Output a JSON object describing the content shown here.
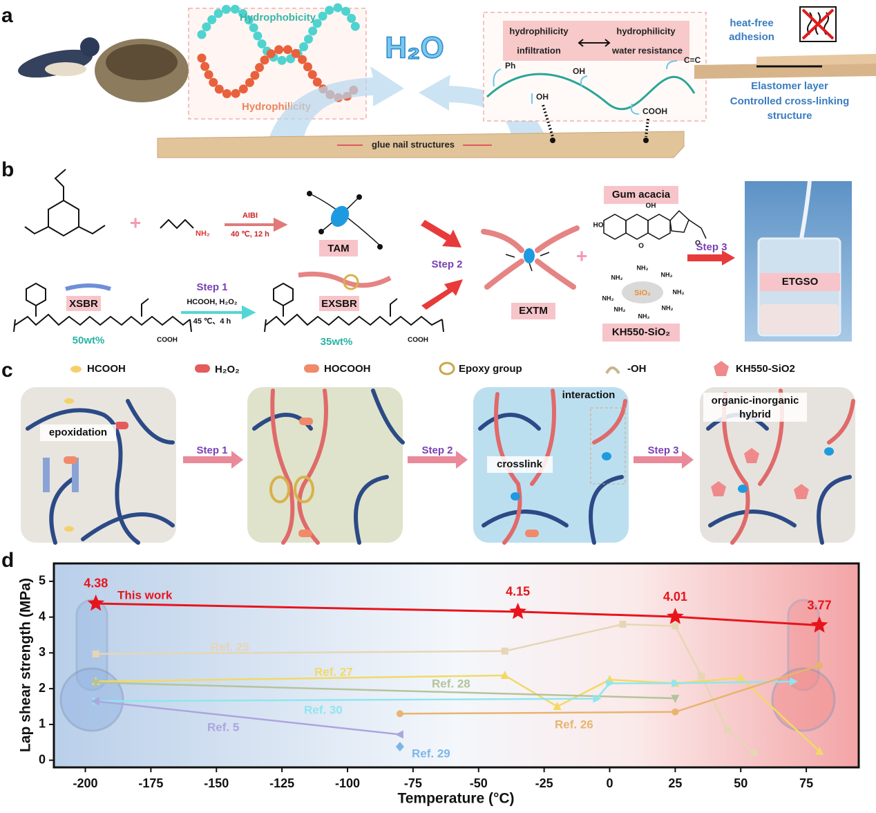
{
  "panels": [
    "a",
    "b",
    "c",
    "d"
  ],
  "panel_a": {
    "hydrophobicity": "Hydrophobicity",
    "hydrophilicity": "Hydrophilicity",
    "water": "H₂O",
    "glue": "glue nail structures",
    "box": [
      "hydrophilicity",
      "hydrophilicity",
      "infiltration",
      "water resistance"
    ],
    "groups": [
      "Ph",
      "OH",
      "C=C",
      "OH",
      "COOH"
    ],
    "heat_free": [
      "heat-free",
      "adhesion"
    ],
    "elastomer": [
      "Elastomer layer",
      "Controlled cross-linking",
      "structure"
    ]
  },
  "panel_b": {
    "reagent": "AIBI",
    "condition": "40 ℃, 12 h",
    "amine": "NH₂",
    "tam": "TAM",
    "xsbr": "XSBR",
    "xsbr_content": "50wt%",
    "step1": "Step 1",
    "step1_reagents": "HCOOH, H₂O₂",
    "step1_condition": "45 ℃、4 h",
    "exsbr": "EXSBR",
    "exsbr_content": "35wt%",
    "cooh": [
      "COOH",
      "COOH"
    ],
    "step2": "Step 2",
    "extm": "EXTM",
    "gum": "Gum acacia",
    "gum_groups": [
      "OH",
      "HO",
      "O",
      "O"
    ],
    "silica_core": "SiO₂",
    "silica_groups": [
      "NH₂",
      "NH₂",
      "NH₂",
      "NH₂",
      "NH₂",
      "NH₂",
      "NH₂",
      "NH₂"
    ],
    "silica": "KH550-SiO₂",
    "step3": "Step 3",
    "product": "ETGSO"
  },
  "panel_c": {
    "legend": [
      "HCOOH",
      "H₂O₂",
      "HOCOOH",
      "Epoxy group",
      "-OH",
      "KH550-SiO2"
    ],
    "steps": [
      "Step 1",
      "Step 2",
      "Step 3"
    ],
    "notes": [
      "epoxidation",
      "interaction",
      "crosslink",
      "organic-inorganic",
      "hybrid"
    ]
  },
  "chart_data": {
    "type": "line",
    "xlabel": "Temperature (°C)",
    "ylabel": "Lap shear strength (MPa)",
    "xlim": [
      -212,
      95
    ],
    "ylim": [
      -0.2,
      5.5
    ],
    "xticks": [
      -200,
      -175,
      -150,
      -125,
      -100,
      -75,
      -50,
      -25,
      0,
      25,
      50,
      75
    ],
    "yticks": [
      0,
      1,
      2,
      3,
      4,
      5
    ],
    "series": [
      {
        "name": "This work",
        "color": "#e8141c",
        "marker": "star",
        "x": [
          -196,
          -35,
          25,
          80
        ],
        "values": [
          4.38,
          4.15,
          4.01,
          3.77
        ]
      },
      {
        "name": "Ref. 25",
        "color": "#e6d6b6",
        "marker": "square",
        "x": [
          -196,
          -40,
          5,
          25,
          35,
          45,
          55
        ],
        "values": [
          2.97,
          3.05,
          3.8,
          3.75,
          2.35,
          0.83,
          0.2
        ]
      },
      {
        "name": "Ref. 27",
        "color": "#f2d966",
        "marker": "triangle",
        "x": [
          -196,
          -40,
          -20,
          0,
          25,
          50,
          80
        ],
        "values": [
          2.2,
          2.37,
          1.5,
          2.25,
          2.15,
          2.3,
          0.25
        ]
      },
      {
        "name": "Ref. 28",
        "color": "#b4c49a",
        "marker": "triangle-down",
        "x": [
          -196,
          25
        ],
        "values": [
          2.17,
          1.73
        ]
      },
      {
        "name": "Ref. 30",
        "color": "#8ee6f0",
        "marker": "triangle-right",
        "x": [
          -196,
          -5,
          0,
          25,
          70
        ],
        "values": [
          1.65,
          1.72,
          2.15,
          2.15,
          2.2
        ]
      },
      {
        "name": "Ref. 5",
        "color": "#ada4e0",
        "marker": "triangle-left",
        "x": [
          -196,
          -80
        ],
        "values": [
          1.65,
          0.72
        ]
      },
      {
        "name": "Ref. 26",
        "color": "#e8b46e",
        "marker": "circle",
        "x": [
          -80,
          25,
          80
        ],
        "values": [
          1.3,
          1.35,
          2.65
        ]
      },
      {
        "name": "Ref. 29",
        "color": "#7cb6e8",
        "marker": "diamond",
        "x": [
          -80
        ],
        "values": [
          0.38
        ]
      }
    ]
  }
}
